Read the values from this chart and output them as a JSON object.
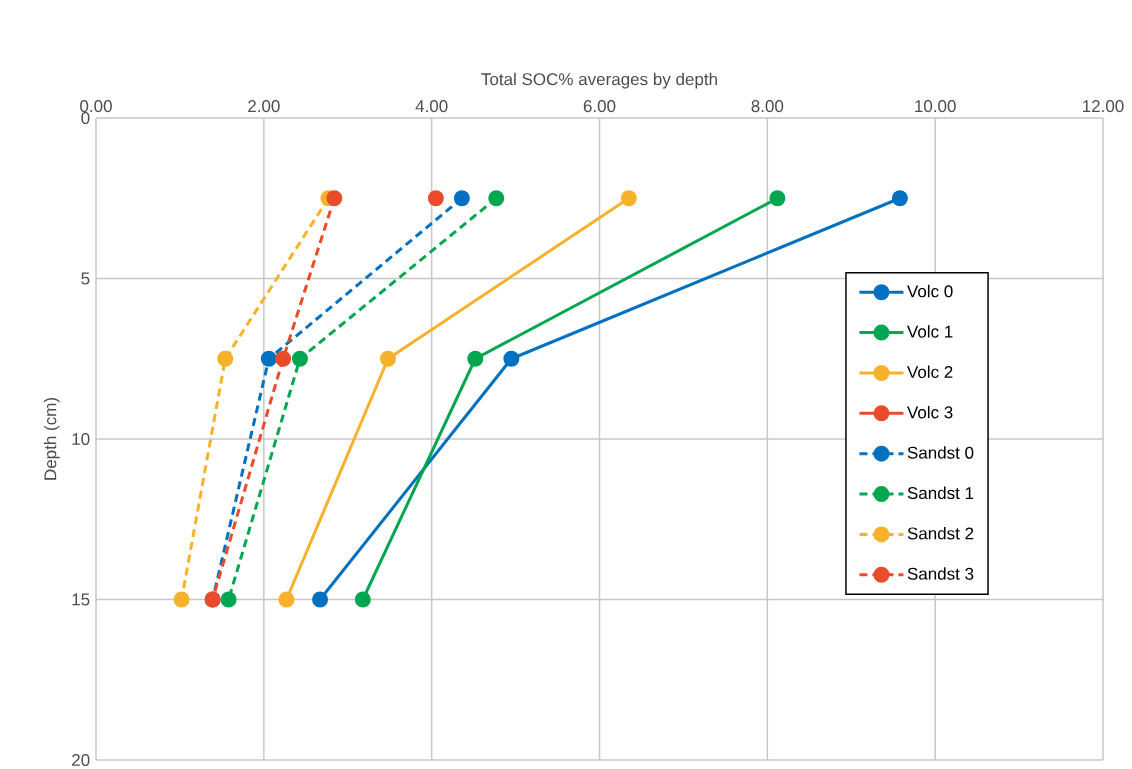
{
  "chart_data": {
    "type": "line",
    "xlabel": "Total SOC% averages by depth",
    "ylabel": "Depth (cm)",
    "xlim": [
      0,
      12
    ],
    "xticks": [
      {
        "value": 0,
        "label": "0.00"
      },
      {
        "value": 2,
        "label": "2.00"
      },
      {
        "value": 4,
        "label": "4.00"
      },
      {
        "value": 6,
        "label": "6.00"
      },
      {
        "value": 8,
        "label": "8.00"
      },
      {
        "value": 10,
        "label": "10.00"
      },
      {
        "value": 12,
        "label": "12.00"
      }
    ],
    "ylim": [
      20,
      0
    ],
    "yticks": [
      0,
      5,
      10,
      15,
      20
    ],
    "grid": true,
    "legend": "right",
    "marker": "circle",
    "series": [
      {
        "name": "Volc 0",
        "color": "#0070c0",
        "line_style": "solid",
        "x": [
          9.58,
          4.95,
          2.67
        ],
        "values": [
          2.5,
          7.5,
          15
        ]
      },
      {
        "name": "Volc 1",
        "color": "#00a650",
        "line_style": "solid",
        "x": [
          8.12,
          4.52,
          3.18
        ],
        "values": [
          2.5,
          7.5,
          15
        ]
      },
      {
        "name": "Volc 2",
        "color": "#f7b12a",
        "line_style": "solid",
        "x": [
          6.35,
          3.48,
          2.27
        ],
        "values": [
          2.5,
          7.5,
          15
        ]
      },
      {
        "name": "Volc 3",
        "color": "#ea4b2a",
        "line_style": "solid",
        "x": [
          4.05
        ],
        "values": [
          2.5
        ]
      },
      {
        "name": "Sandst 0",
        "color": "#0070c0",
        "line_style": "dashed",
        "x": [
          4.36,
          2.06,
          1.39
        ],
        "values": [
          2.5,
          7.5,
          15
        ]
      },
      {
        "name": "Sandst 1",
        "color": "#00a650",
        "line_style": "dashed",
        "x": [
          4.77,
          2.43,
          1.58
        ],
        "values": [
          2.5,
          7.5,
          15
        ]
      },
      {
        "name": "Sandst 2",
        "color": "#f7b12a",
        "line_style": "dashed",
        "x": [
          2.77,
          1.54,
          1.02
        ],
        "values": [
          2.5,
          7.5,
          15
        ]
      },
      {
        "name": "Sandst 3",
        "color": "#ea4b2a",
        "line_style": "dashed",
        "x": [
          2.84,
          2.23,
          1.39
        ],
        "values": [
          2.5,
          7.5,
          15
        ]
      }
    ]
  }
}
